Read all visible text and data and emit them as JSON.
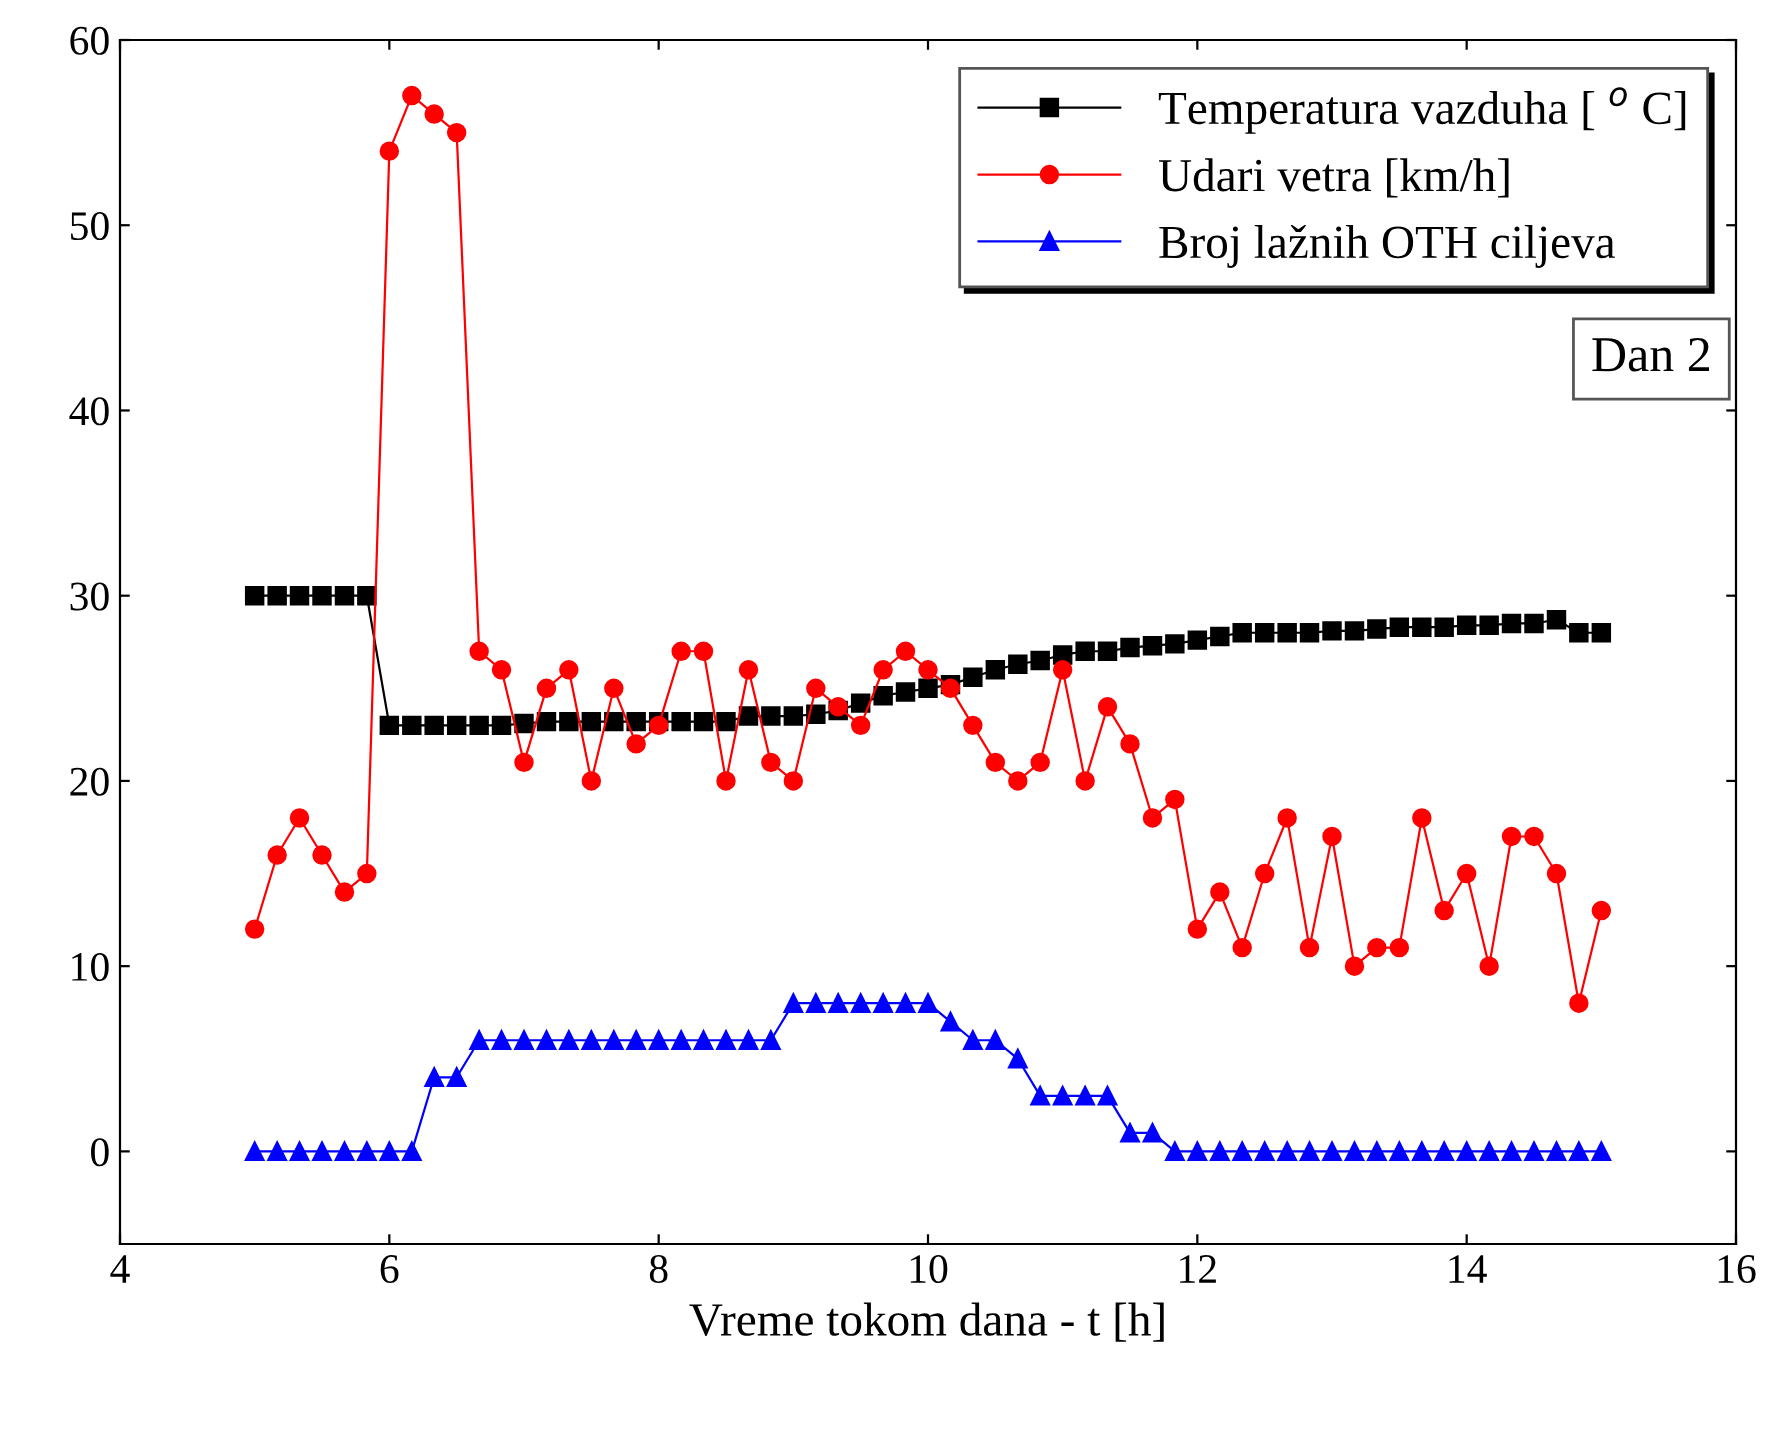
{
  "chart_data": {
    "type": "line",
    "xlabel": "Vreme tokom dana - t [h]",
    "x": [
      5,
      5.167,
      5.333,
      5.5,
      5.667,
      5.833,
      6,
      6.167,
      6.333,
      6.5,
      6.667,
      6.833,
      7,
      7.167,
      7.333,
      7.5,
      7.667,
      7.833,
      8,
      8.167,
      8.333,
      8.5,
      8.667,
      8.833,
      9,
      9.167,
      9.333,
      9.5,
      9.667,
      9.833,
      10,
      10.167,
      10.333,
      10.5,
      10.667,
      10.833,
      11,
      11.167,
      11.333,
      11.5,
      11.667,
      11.833,
      12,
      12.167,
      12.333,
      12.5,
      12.667,
      12.833,
      13,
      13.167,
      13.333,
      13.5,
      13.667,
      13.833,
      14,
      14.167,
      14.333,
      14.5,
      14.667,
      14.833,
      15
    ],
    "series": [
      {
        "name": "Temperatura vazduha [ $^{o}$ C]",
        "color": "#000000",
        "marker": "square",
        "values": [
          30,
          30,
          30,
          30,
          30,
          30,
          23,
          23,
          23,
          23,
          23,
          23,
          23.1,
          23.2,
          23.2,
          23.2,
          23.2,
          23.2,
          23.2,
          23.2,
          23.2,
          23.2,
          23.5,
          23.5,
          23.5,
          23.6,
          23.8,
          24.2,
          24.6,
          24.8,
          25,
          25.2,
          25.6,
          26,
          26.3,
          26.5,
          26.8,
          27,
          27,
          27.2,
          27.3,
          27.4,
          27.6,
          27.8,
          28,
          28,
          28,
          28,
          28.1,
          28.1,
          28.2,
          28.3,
          28.3,
          28.3,
          28.4,
          28.4,
          28.5,
          28.5,
          28.7,
          28,
          28
        ]
      },
      {
        "name": "Udari vetra [km/h]",
        "color": "#ff0000",
        "marker": "circle",
        "values": [
          12,
          16,
          18,
          16,
          14,
          15,
          54,
          57,
          56,
          55,
          27,
          26,
          21,
          25,
          26,
          20,
          25,
          22,
          23,
          27,
          27,
          20,
          26,
          21,
          20,
          25,
          24,
          23,
          26,
          27,
          26,
          25,
          23,
          21,
          20,
          21,
          26,
          20,
          24,
          22,
          18,
          19,
          12,
          14,
          11,
          15,
          18,
          11,
          17,
          10,
          11,
          11,
          18,
          13,
          15,
          10,
          17,
          17,
          15,
          8,
          13
        ]
      },
      {
        "name": "Broj lažnih OTH ciljeva",
        "color": "#0000ff",
        "marker": "triangle",
        "values": [
          0,
          0,
          0,
          0,
          0,
          0,
          0,
          0,
          4,
          4,
          6,
          6,
          6,
          6,
          6,
          6,
          6,
          6,
          6,
          6,
          6,
          6,
          6,
          6,
          8,
          8,
          8,
          8,
          8,
          8,
          8,
          7,
          6,
          6,
          5,
          3,
          3,
          3,
          3,
          1,
          1,
          0,
          0,
          0,
          0,
          0,
          0,
          0,
          0,
          0,
          0,
          0,
          0,
          0,
          0,
          0,
          0,
          0,
          0,
          0,
          0
        ]
      }
    ],
    "xlim": [
      4,
      16
    ],
    "xticks": [
      4,
      6,
      8,
      10,
      12,
      14,
      16
    ],
    "ylim": [
      -5,
      60
    ],
    "yticks": [
      0,
      10,
      20,
      30,
      40,
      50,
      60
    ],
    "grid": false,
    "legend": "top right",
    "annotations": [
      "Dan 2"
    ]
  }
}
